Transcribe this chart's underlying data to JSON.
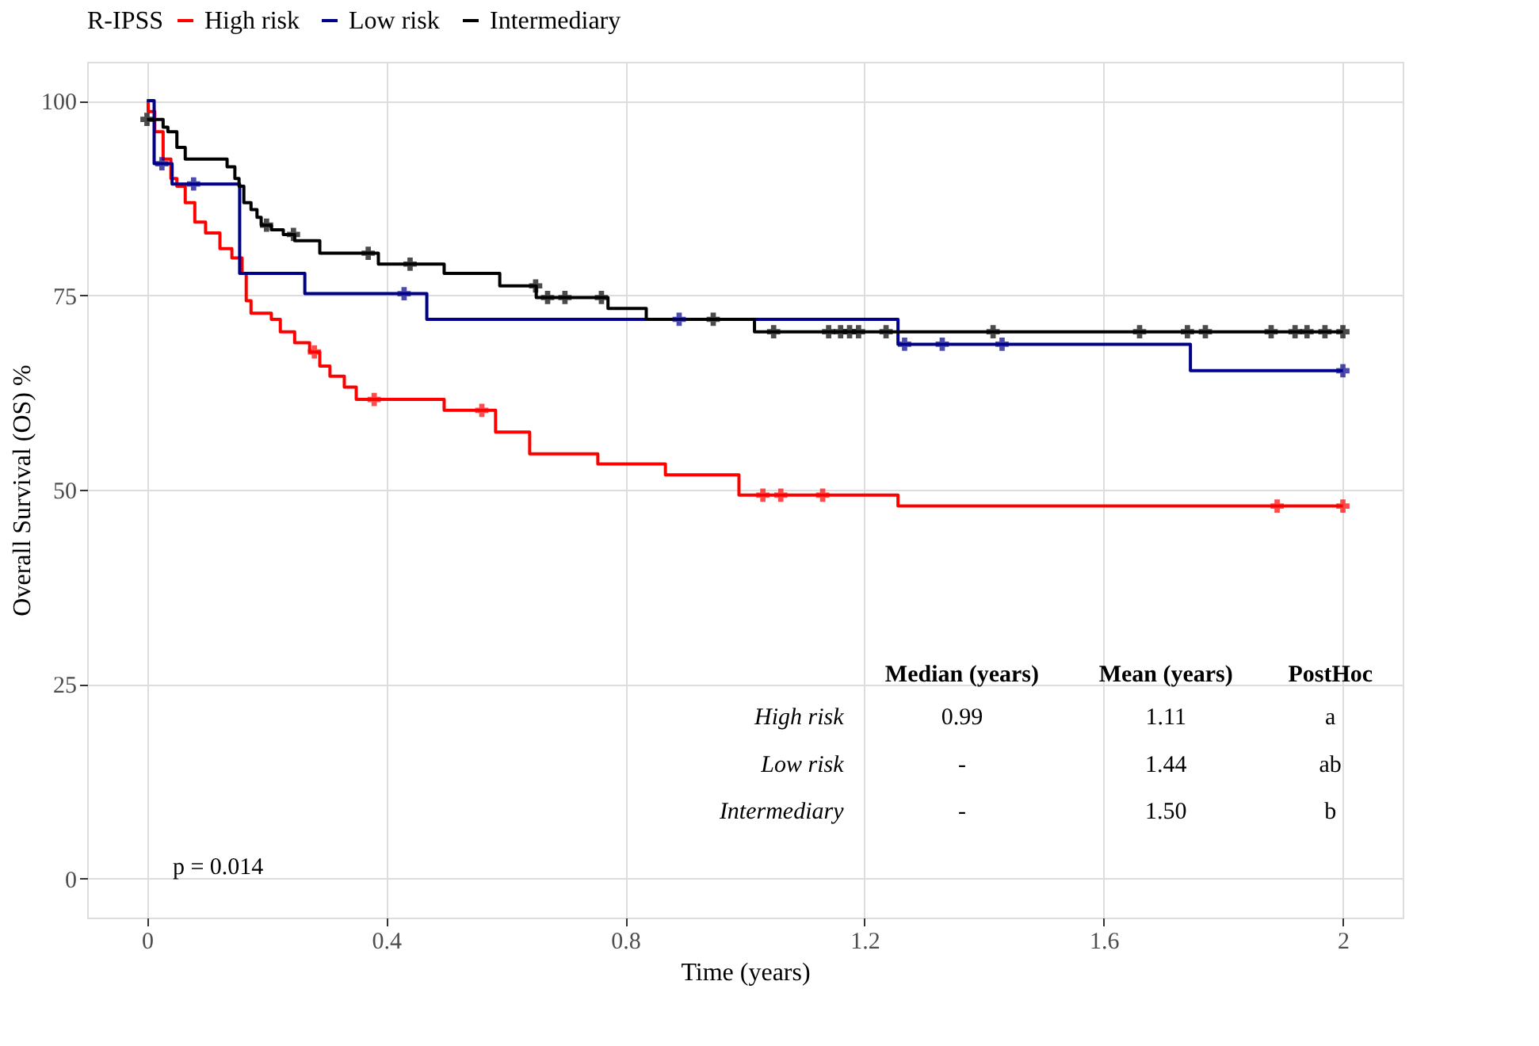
{
  "chart_data": {
    "type": "step",
    "xlabel": "Time (years)",
    "ylabel": "Overall Survival (OS) %",
    "legend_title": "R-IPSS",
    "legend": "top",
    "grid": true,
    "xlim": [
      -0.1,
      2.1
    ],
    "ylim": [
      -5,
      105
    ],
    "xticks": [
      0,
      0.4,
      0.8,
      1.2,
      1.6,
      2
    ],
    "yticks": [
      0,
      25,
      50,
      75,
      100
    ],
    "series": [
      {
        "name": "High risk",
        "color": "#ff0000",
        "x": [
          0,
          0.002,
          0.013,
          0.027,
          0.04,
          0.05,
          0.064,
          0.08,
          0.098,
          0.122,
          0.142,
          0.159,
          0.166,
          0.174,
          0.208,
          0.223,
          0.247,
          0.272,
          0.289,
          0.306,
          0.33,
          0.35,
          0.497,
          0.583,
          0.64,
          0.754,
          0.867,
          0.99,
          1.256,
          2.0
        ],
        "values": [
          100,
          98.6,
          96,
          92.5,
          90,
          89,
          86.9,
          84.4,
          83,
          81,
          79.8,
          77.8,
          74.3,
          72.7,
          71.9,
          70.3,
          68.9,
          67.7,
          65.9,
          64.6,
          63.2,
          61.6,
          60.2,
          57.4,
          54.6,
          53.3,
          51.9,
          49.3,
          47.9,
          47.9
        ]
      },
      {
        "name": "Low risk",
        "color": "#00008b",
        "x": [
          0,
          0.012,
          0.042,
          0.155,
          0.264,
          0.468,
          1.256,
          1.745,
          2.0
        ],
        "values": [
          100,
          91.9,
          89.3,
          77.8,
          75.2,
          71.9,
          68.7,
          65.3,
          65.3
        ]
      },
      {
        "name": "Intermediary",
        "color": "#000000",
        "x": [
          0,
          0.027,
          0.035,
          0.05,
          0.064,
          0.134,
          0.147,
          0.154,
          0.162,
          0.174,
          0.184,
          0.191,
          0.208,
          0.228,
          0.247,
          0.289,
          0.387,
          0.497,
          0.59,
          0.651,
          0.771,
          0.835,
          1.016,
          2.0
        ],
        "values": [
          97.6,
          96.6,
          96,
          94,
          92.5,
          91.5,
          90,
          89,
          86.9,
          86,
          85,
          84,
          83.4,
          82.8,
          82,
          80.4,
          79,
          77.8,
          76.2,
          74.7,
          73.3,
          71.9,
          70.3,
          70.3
        ]
      },
      {
        "type": "scatter",
        "marker": "cross",
        "color": "#ff0000",
        "x": [
          0.28,
          0.38,
          0.56,
          1.03,
          1.06,
          1.13,
          1.89,
          2.0
        ],
        "values": [
          67.7,
          61.6,
          60.2,
          49.3,
          49.3,
          49.3,
          47.9,
          47.9
        ]
      },
      {
        "type": "scatter",
        "marker": "cross",
        "color": "#00008b",
        "x": [
          0.025,
          0.078,
          0.43,
          0.89,
          1.267,
          1.33,
          1.43,
          2.0
        ],
        "values": [
          91.9,
          89.3,
          75.2,
          71.9,
          68.7,
          68.7,
          68.7,
          65.3
        ]
      },
      {
        "type": "scatter",
        "marker": "cross",
        "color": "#000000",
        "x": [
          0,
          0.2,
          0.245,
          0.37,
          0.44,
          0.65,
          0.67,
          0.699,
          0.76,
          0.947,
          1.048,
          1.14,
          1.16,
          1.175,
          1.19,
          1.236,
          1.415,
          1.66,
          1.74,
          1.77,
          1.88,
          1.92,
          1.94,
          1.97,
          2.0
        ],
        "values": [
          97.6,
          84,
          82.8,
          80.4,
          79,
          76.2,
          74.7,
          74.7,
          74.7,
          71.9,
          70.3,
          70.3,
          70.3,
          70.3,
          70.3,
          70.3,
          70.3,
          70.3,
          70.3,
          70.3,
          70.3,
          70.3,
          70.3,
          70.3,
          70.3
        ]
      }
    ],
    "annotations": [
      "p = 0.014",
      "Median (years)",
      "Mean (years)",
      "PostHoc",
      "High risk",
      "0.99",
      "1.11",
      "a",
      "Low risk",
      "-",
      "1.44",
      "ab",
      "Intermediary",
      "-",
      "1.50",
      "b"
    ]
  }
}
